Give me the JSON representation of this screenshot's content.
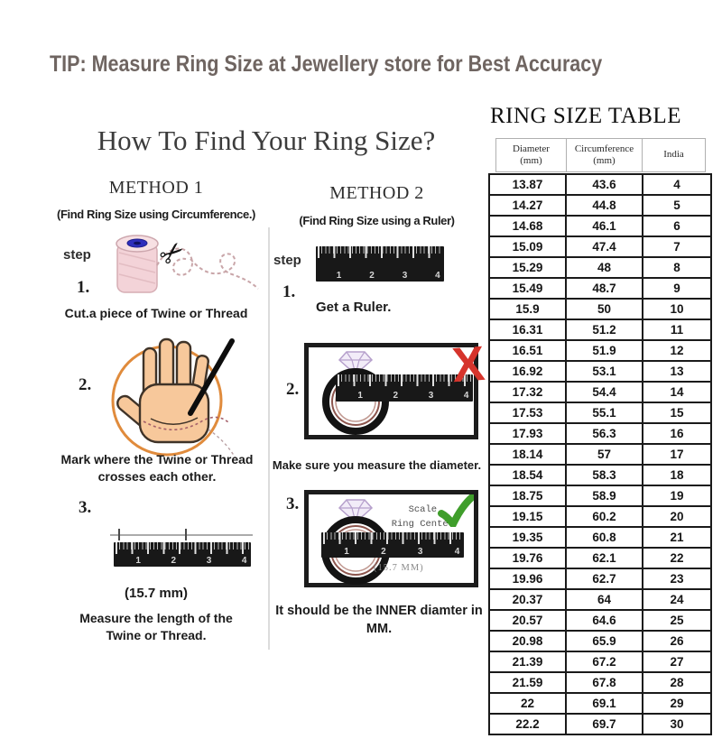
{
  "tip": {
    "text": "TIP: Measure Ring Size at Jewellery store for Best Accuracy"
  },
  "colors": {
    "tip_text": "#6f6561",
    "wrong_x": "#d6342c",
    "correct_check": "#3f9e2b",
    "hand_circle": "#e08b3c",
    "table_border": "#1a1a1a"
  },
  "guide": {
    "title": "How To Find Your Ring Size?",
    "methods": [
      {
        "heading": "METHOD 1",
        "subheading": "(Find Ring Size using Circumference.)",
        "step_label": "step",
        "steps": [
          {
            "num": "1.",
            "caption": "Cut.a piece of Twine or Thread"
          },
          {
            "num": "2.",
            "caption": "Mark where the Twine or Thread crosses each other."
          },
          {
            "num": "3.",
            "note": "(15.7 mm)",
            "caption": "Measure the length of the Twine or Thread."
          }
        ]
      },
      {
        "heading": "METHOD 2",
        "subheading": "(Find Ring Size using a Ruler)",
        "step_label": "step",
        "steps": [
          {
            "num": "1.",
            "caption": "Get a Ruler."
          },
          {
            "num": "2.",
            "caption": "Make sure you measure the diameter."
          },
          {
            "num": "3.",
            "caption": "It should be the INNER diamter in MM.",
            "labels": {
              "scale": "Scale",
              "ring_center": "Ring Center",
              "measurement": "(15.7 MM)"
            }
          }
        ]
      }
    ]
  },
  "ruler": {
    "numbers": [
      "1",
      "2",
      "3",
      "4"
    ]
  },
  "table": {
    "title": "RING SIZE TABLE",
    "columns": [
      {
        "line1": "Diameter",
        "line2": "(mm)"
      },
      {
        "line1": "Circumference",
        "line2": "(mm)"
      },
      {
        "line1": "India",
        "line2": ""
      }
    ],
    "rows": [
      [
        "13.87",
        "43.6",
        "4"
      ],
      [
        "14.27",
        "44.8",
        "5"
      ],
      [
        "14.68",
        "46.1",
        "6"
      ],
      [
        "15.09",
        "47.4",
        "7"
      ],
      [
        "15.29",
        "48",
        "8"
      ],
      [
        "15.49",
        "48.7",
        "9"
      ],
      [
        "15.9",
        "50",
        "10"
      ],
      [
        "16.31",
        "51.2",
        "11"
      ],
      [
        "16.51",
        "51.9",
        "12"
      ],
      [
        "16.92",
        "53.1",
        "13"
      ],
      [
        "17.32",
        "54.4",
        "14"
      ],
      [
        "17.53",
        "55.1",
        "15"
      ],
      [
        "17.93",
        "56.3",
        "16"
      ],
      [
        "18.14",
        "57",
        "17"
      ],
      [
        "18.54",
        "58.3",
        "18"
      ],
      [
        "18.75",
        "58.9",
        "19"
      ],
      [
        "19.15",
        "60.2",
        "20"
      ],
      [
        "19.35",
        "60.8",
        "21"
      ],
      [
        "19.76",
        "62.1",
        "22"
      ],
      [
        "19.96",
        "62.7",
        "23"
      ],
      [
        "20.37",
        "64",
        "24"
      ],
      [
        "20.57",
        "64.6",
        "25"
      ],
      [
        "20.98",
        "65.9",
        "26"
      ],
      [
        "21.39",
        "67.2",
        "27"
      ],
      [
        "21.59",
        "67.8",
        "28"
      ],
      [
        "22",
        "69.1",
        "29"
      ],
      [
        "22.2",
        "69.7",
        "30"
      ]
    ]
  }
}
